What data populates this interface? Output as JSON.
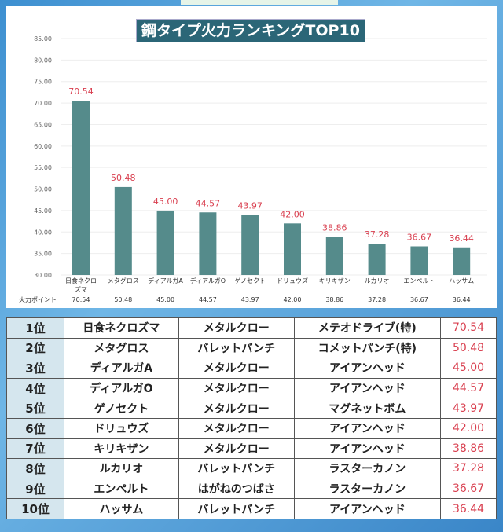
{
  "chart_data": {
    "type": "bar",
    "title": "鋼タイプ火力ランキングTOP10",
    "categories": [
      "日食ネクロズマ",
      "メタグロス",
      "ディアルガA",
      "ディアルガO",
      "ゲノセクト",
      "ドリュウズ",
      "キリキザン",
      "ルカリオ",
      "エンペルト",
      "ハッサム"
    ],
    "values": [
      70.54,
      50.48,
      45.0,
      44.57,
      43.97,
      42.0,
      38.86,
      37.28,
      36.67,
      36.44
    ],
    "value_labels": [
      "70.54",
      "50.48",
      "45.00",
      "44.57",
      "43.97",
      "42.00",
      "38.86",
      "37.28",
      "36.67",
      "36.44"
    ],
    "ylim": [
      30,
      85
    ],
    "yticks": [
      "30.00",
      "35.00",
      "40.00",
      "45.00",
      "50.00",
      "55.00",
      "60.00",
      "65.00",
      "70.00",
      "75.00",
      "80.00",
      "85.00"
    ],
    "row_label": "火力ポイント",
    "grid": true,
    "colors": {
      "bar": "#558b8b",
      "label": "#d94050"
    }
  },
  "table": [
    {
      "rank": "1位",
      "name": "日食ネクロズマ",
      "fast": "メタルクロー",
      "charge": "メテオドライブ(特)",
      "value": "70.54"
    },
    {
      "rank": "2位",
      "name": "メタグロス",
      "fast": "バレットパンチ",
      "charge": "コメットパンチ(特)",
      "value": "50.48"
    },
    {
      "rank": "3位",
      "name": "ディアルガA",
      "fast": "メタルクロー",
      "charge": "アイアンヘッド",
      "value": "45.00"
    },
    {
      "rank": "4位",
      "name": "ディアルガO",
      "fast": "メタルクロー",
      "charge": "アイアンヘッド",
      "value": "44.57"
    },
    {
      "rank": "5位",
      "name": "ゲノセクト",
      "fast": "メタルクロー",
      "charge": "マグネットボム",
      "value": "43.97"
    },
    {
      "rank": "6位",
      "name": "ドリュウズ",
      "fast": "メタルクロー",
      "charge": "アイアンヘッド",
      "value": "42.00"
    },
    {
      "rank": "7位",
      "name": "キリキザン",
      "fast": "メタルクロー",
      "charge": "アイアンヘッド",
      "value": "38.86"
    },
    {
      "rank": "8位",
      "name": "ルカリオ",
      "fast": "バレットパンチ",
      "charge": "ラスターカノン",
      "value": "37.28"
    },
    {
      "rank": "9位",
      "name": "エンペルト",
      "fast": "はがねのつばさ",
      "charge": "ラスターカノン",
      "value": "36.67"
    },
    {
      "rank": "10位",
      "name": "ハッサム",
      "fast": "バレットパンチ",
      "charge": "アイアンヘッド",
      "value": "36.44"
    }
  ]
}
